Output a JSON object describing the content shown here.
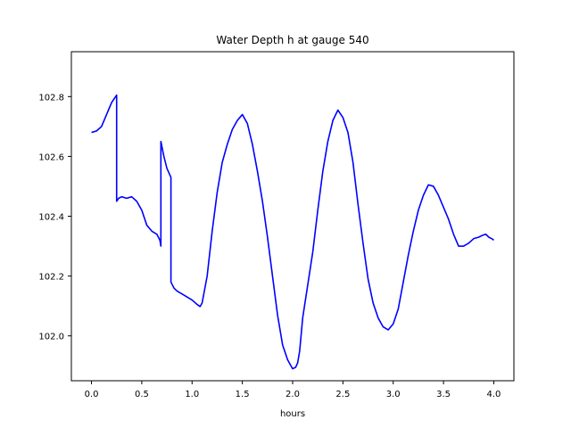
{
  "chart_data": {
    "type": "line",
    "title": "Water Depth h at gauge 540",
    "xlabel": "hours",
    "ylabel": "",
    "xlim": [
      -0.2,
      4.2
    ],
    "ylim": [
      101.85,
      102.95
    ],
    "xticks": [
      0.0,
      0.5,
      1.0,
      1.5,
      2.0,
      2.5,
      3.0,
      3.5,
      4.0
    ],
    "xtick_labels": [
      "0.0",
      "0.5",
      "1.0",
      "1.5",
      "2.0",
      "2.5",
      "3.0",
      "3.5",
      "4.0"
    ],
    "yticks": [
      102.0,
      102.2,
      102.4,
      102.6,
      102.8
    ],
    "ytick_labels": [
      "102.0",
      "102.2",
      "102.4",
      "102.6",
      "102.8"
    ],
    "grid": false,
    "series": [
      {
        "color": "#0000ff",
        "x": [
          0.0,
          0.05,
          0.1,
          0.15,
          0.2,
          0.25,
          0.25,
          0.27,
          0.3,
          0.35,
          0.4,
          0.45,
          0.5,
          0.55,
          0.6,
          0.65,
          0.68,
          0.69,
          0.69,
          0.72,
          0.75,
          0.79,
          0.79,
          0.82,
          0.85,
          0.9,
          0.95,
          1.0,
          1.05,
          1.08,
          1.1,
          1.15,
          1.2,
          1.25,
          1.3,
          1.35,
          1.4,
          1.45,
          1.5,
          1.55,
          1.6,
          1.65,
          1.7,
          1.75,
          1.8,
          1.85,
          1.9,
          1.95,
          2.0,
          2.03,
          2.05,
          2.07,
          2.1,
          2.15,
          2.2,
          2.25,
          2.3,
          2.35,
          2.4,
          2.45,
          2.5,
          2.55,
          2.6,
          2.65,
          2.7,
          2.75,
          2.8,
          2.85,
          2.9,
          2.95,
          3.0,
          3.03,
          3.05,
          3.1,
          3.15,
          3.2,
          3.25,
          3.3,
          3.35,
          3.4,
          3.45,
          3.5,
          3.55,
          3.6,
          3.65,
          3.7,
          3.75,
          3.8,
          3.85,
          3.88,
          3.92,
          3.95,
          3.98,
          4.0
        ],
        "y": [
          102.68,
          102.685,
          102.7,
          102.74,
          102.78,
          102.805,
          102.45,
          102.46,
          102.465,
          102.46,
          102.465,
          102.45,
          102.42,
          102.37,
          102.35,
          102.34,
          102.32,
          102.3,
          102.65,
          102.6,
          102.56,
          102.53,
          102.18,
          102.16,
          102.15,
          102.14,
          102.13,
          102.12,
          102.105,
          102.098,
          102.11,
          102.2,
          102.35,
          102.48,
          102.58,
          102.64,
          102.69,
          102.72,
          102.74,
          102.71,
          102.64,
          102.55,
          102.45,
          102.33,
          102.2,
          102.07,
          101.97,
          101.92,
          101.89,
          101.895,
          101.91,
          101.95,
          102.06,
          102.17,
          102.28,
          102.42,
          102.55,
          102.65,
          102.72,
          102.755,
          102.73,
          102.68,
          102.58,
          102.44,
          102.31,
          102.19,
          102.11,
          102.06,
          102.03,
          102.02,
          102.04,
          102.07,
          102.09,
          102.18,
          102.27,
          102.35,
          102.42,
          102.47,
          102.505,
          102.5,
          102.47,
          102.43,
          102.39,
          102.34,
          102.3,
          102.3,
          102.31,
          102.325,
          102.33,
          102.335,
          102.34,
          102.33,
          102.325,
          102.32
        ]
      }
    ]
  }
}
